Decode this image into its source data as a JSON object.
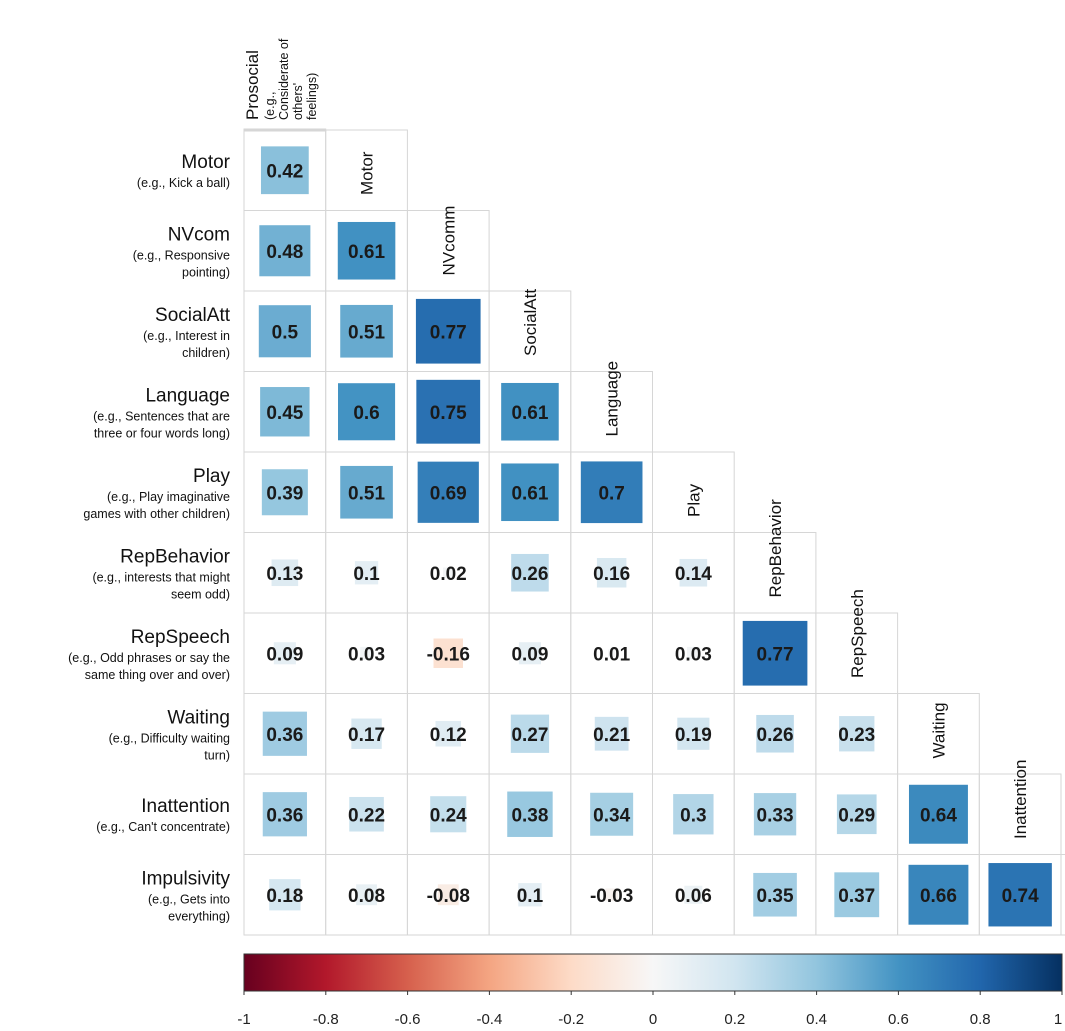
{
  "chart_data": {
    "type": "heatmap",
    "layout": "lower-triangle correlation matrix",
    "colorbar_range": [
      -1,
      1
    ],
    "colorbar_ticks": [
      "-1",
      "-0.8",
      "-0.6",
      "-0.4",
      "-0.2",
      "0",
      "0.2",
      "0.4",
      "0.6",
      "0.8",
      "1"
    ],
    "colors": {
      "negative_end": "#67001f",
      "mid": "#f7f7f7",
      "positive_end": "#053061"
    },
    "columns": [
      {
        "label": "Prosocial",
        "sub": [
          "(e.g.,",
          "Considerate of",
          "others'",
          "feelings)"
        ]
      },
      {
        "label": "Motor",
        "sub": []
      },
      {
        "label": "NVcomm",
        "sub": []
      },
      {
        "label": "SocialAtt",
        "sub": []
      },
      {
        "label": "Language",
        "sub": []
      },
      {
        "label": "Play",
        "sub": []
      },
      {
        "label": "RepBehavior",
        "sub": []
      },
      {
        "label": "RepSpeech",
        "sub": []
      },
      {
        "label": "Waiting",
        "sub": []
      },
      {
        "label": "Inattention",
        "sub": []
      }
    ],
    "rows": [
      {
        "label": "Motor",
        "sub": [
          "(e.g., Kick a ball)"
        ],
        "values": [
          "0.42"
        ]
      },
      {
        "label": "NVcom",
        "sub": [
          "(e.g., Responsive",
          "pointing)"
        ],
        "values": [
          "0.48",
          "0.61"
        ]
      },
      {
        "label": "SocialAtt",
        "sub": [
          "(e.g., Interest in",
          "children)"
        ],
        "values": [
          "0.5",
          "0.51",
          "0.77"
        ]
      },
      {
        "label": "Language",
        "sub": [
          "(e.g., Sentences that are",
          "three or four words long)"
        ],
        "values": [
          "0.45",
          "0.6",
          "0.75",
          "0.61"
        ]
      },
      {
        "label": "Play",
        "sub": [
          "(e.g., Play imaginative",
          "games with other children)"
        ],
        "values": [
          "0.39",
          "0.51",
          "0.69",
          "0.61",
          "0.7"
        ]
      },
      {
        "label": "RepBehavior",
        "sub": [
          "(e.g., interests that might",
          "seem odd)"
        ],
        "values": [
          "0.13",
          "0.1",
          "0.02",
          "0.26",
          "0.16",
          "0.14"
        ]
      },
      {
        "label": "RepSpeech",
        "sub": [
          "(e.g., Odd phrases or say the",
          "same thing over and over)"
        ],
        "values": [
          "0.09",
          "0.03",
          "-0.16",
          "0.09",
          "0.01",
          "0.03",
          "0.77"
        ]
      },
      {
        "label": "Waiting",
        "sub": [
          "(e.g., Difficulty waiting",
          "turn)"
        ],
        "values": [
          "0.36",
          "0.17",
          "0.12",
          "0.27",
          "0.21",
          "0.19",
          "0.26",
          "0.23"
        ]
      },
      {
        "label": "Inattention",
        "sub": [
          "(e.g., Can't concentrate)"
        ],
        "values": [
          "0.36",
          "0.22",
          "0.24",
          "0.38",
          "0.34",
          "0.3",
          "0.33",
          "0.29",
          "0.64"
        ]
      },
      {
        "label": "Impulsivity",
        "sub": [
          "(e.g., Gets into",
          "everything)"
        ],
        "values": [
          "0.18",
          "0.08",
          "-0.08",
          "0.1",
          "-0.03",
          "0.06",
          "0.35",
          "0.37",
          "0.66",
          "0.74"
        ]
      }
    ]
  }
}
